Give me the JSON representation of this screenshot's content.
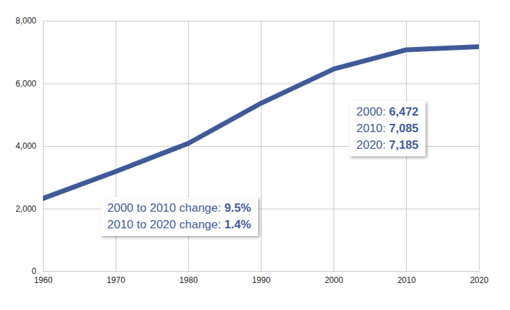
{
  "chart_data": {
    "type": "line",
    "x": [
      1960,
      1970,
      1980,
      1990,
      2000,
      2010,
      2020
    ],
    "values": [
      2340,
      3200,
      4100,
      5380,
      6472,
      7085,
      7185
    ],
    "color": "#3f5a99",
    "xlim": [
      1960,
      2020
    ],
    "xticks": [
      1960,
      1970,
      1980,
      1990,
      2000,
      2010,
      2020
    ],
    "ylim": [
      0,
      8000
    ],
    "yticks": [
      0,
      {
        "value": 2000,
        "label": "2,000"
      },
      {
        "value": 4000,
        "label": "4,000"
      },
      {
        "value": 6000,
        "label": "6,000"
      },
      {
        "value": 8000,
        "label": "8,000"
      }
    ],
    "grid": true,
    "annotations": [
      [
        "2000: 6,472",
        "2010: 7,085",
        "2020: 7,185"
      ],
      [
        "2000 to 2010 change: 9.5%",
        "2010 to 2020 change: 1.4%"
      ]
    ]
  }
}
